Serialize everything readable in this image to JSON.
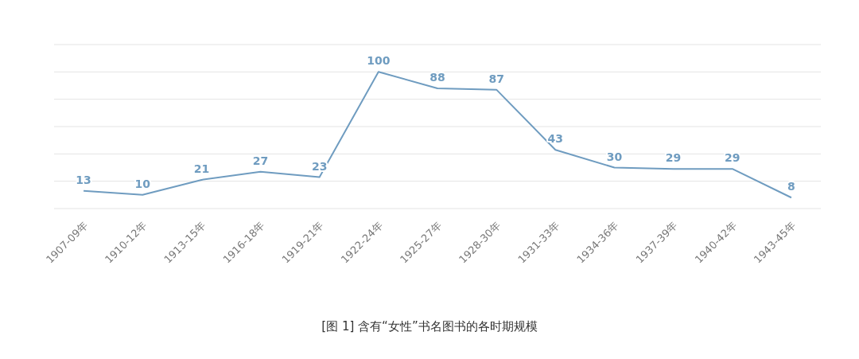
{
  "chart_data": {
    "type": "line",
    "categories": [
      "1907-09年",
      "1910-12年",
      "1913-15年",
      "1916-18年",
      "1919-21年",
      "1922-24年",
      "1925-27年",
      "1928-30年",
      "1931-33年",
      "1934-36年",
      "1937-39年",
      "1940-42年",
      "1943-45年"
    ],
    "values": [
      13,
      10,
      21,
      27,
      23,
      100,
      88,
      87,
      43,
      30,
      29,
      29,
      8
    ],
    "color": "#6f9cc0",
    "grid": "y",
    "tick_labels": "x",
    "data_labels": true,
    "marker": "none",
    "line_style": "solid",
    "annotations": [
      "[图 1] 含有“女性”书名图书的各时期规模"
    ]
  }
}
